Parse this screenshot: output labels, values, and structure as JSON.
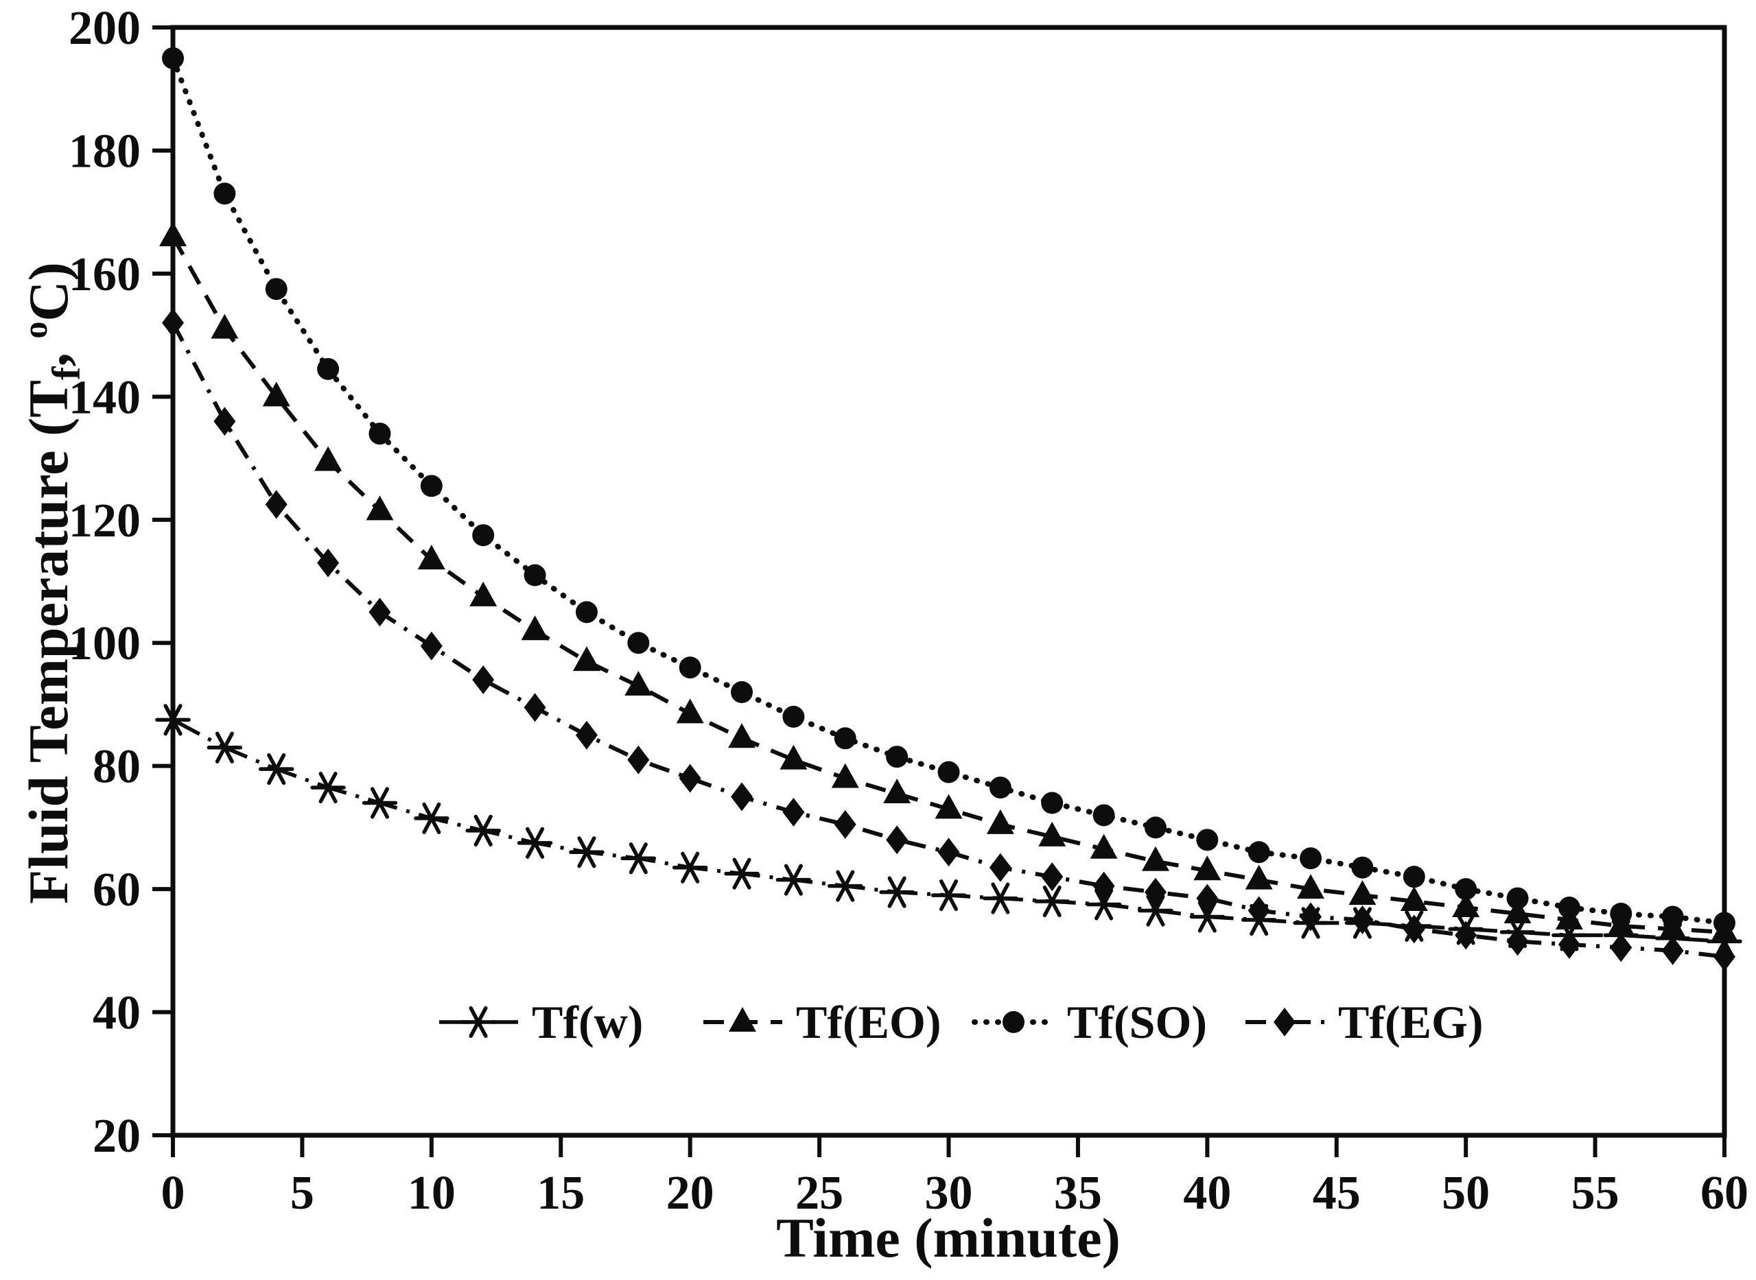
{
  "chart_data": {
    "type": "line",
    "title": "",
    "xlabel": "Time (minute)",
    "ylabel": "Fluid Temperature (Tf, oC)",
    "ylabel_parts": {
      "pre": "Fluid Temperature (T",
      "sub": "f",
      "mid": ", ",
      "sup": "o",
      "post": "C)"
    },
    "xlim": [
      0,
      60
    ],
    "ylim": [
      20,
      200
    ],
    "x_ticks": [
      0,
      5,
      10,
      15,
      20,
      25,
      30,
      35,
      40,
      45,
      50,
      55,
      60
    ],
    "y_ticks": [
      20,
      40,
      60,
      80,
      100,
      120,
      140,
      160,
      180,
      200
    ],
    "grid": false,
    "frame": "box",
    "legend_position": "inside-bottom",
    "ink_color": "#0d0d0d",
    "background_color": "#ffffff",
    "x": [
      0,
      2,
      4,
      6,
      8,
      10,
      12,
      14,
      16,
      18,
      20,
      22,
      24,
      26,
      28,
      30,
      32,
      34,
      36,
      38,
      40,
      42,
      44,
      46,
      48,
      50,
      52,
      54,
      56,
      58,
      60
    ],
    "series": [
      {
        "name": "Tf(w)",
        "marker": "asterisk",
        "line_style": "dash-dot-long",
        "values": [
          87.5,
          83,
          79.5,
          76.5,
          74,
          71.5,
          69.5,
          67.5,
          66,
          65,
          63.5,
          62.5,
          61.5,
          60.5,
          59.5,
          59,
          58.5,
          58,
          57.5,
          56.5,
          55.5,
          55,
          54.5,
          54.5,
          54,
          53.5,
          53,
          52.5,
          52.5,
          52,
          51.5
        ]
      },
      {
        "name": "Tf(EO)",
        "marker": "triangle",
        "line_style": "dashed",
        "values": [
          166,
          151,
          140,
          129.5,
          121.5,
          113.5,
          107.5,
          102,
          97,
          93,
          88.5,
          84.5,
          81,
          78,
          75.5,
          73,
          70.5,
          68.5,
          66.5,
          64.5,
          63,
          61.5,
          60,
          59,
          58,
          57,
          56,
          55,
          54,
          53.5,
          53
        ]
      },
      {
        "name": "Tf(SO)",
        "marker": "circle",
        "line_style": "dotted",
        "values": [
          195,
          173,
          157.5,
          144.5,
          134,
          125.5,
          117.5,
          111,
          105,
          100,
          96,
          92,
          88,
          84.5,
          81.5,
          79,
          76.5,
          74,
          72,
          70,
          68,
          66,
          65,
          63.5,
          62,
          60,
          58.5,
          57,
          56,
          55.5,
          54.5
        ]
      },
      {
        "name": "Tf(EG)",
        "marker": "diamond",
        "line_style": "dash-dot",
        "values": [
          152,
          136,
          122.5,
          113,
          105,
          99.5,
          94,
          89.5,
          85,
          81,
          78,
          75,
          72.5,
          70.5,
          68,
          66,
          63.5,
          62,
          60.5,
          59.5,
          58.5,
          56.5,
          55.5,
          55,
          53.5,
          52.5,
          51.5,
          51,
          50.5,
          50,
          49
        ]
      }
    ]
  }
}
